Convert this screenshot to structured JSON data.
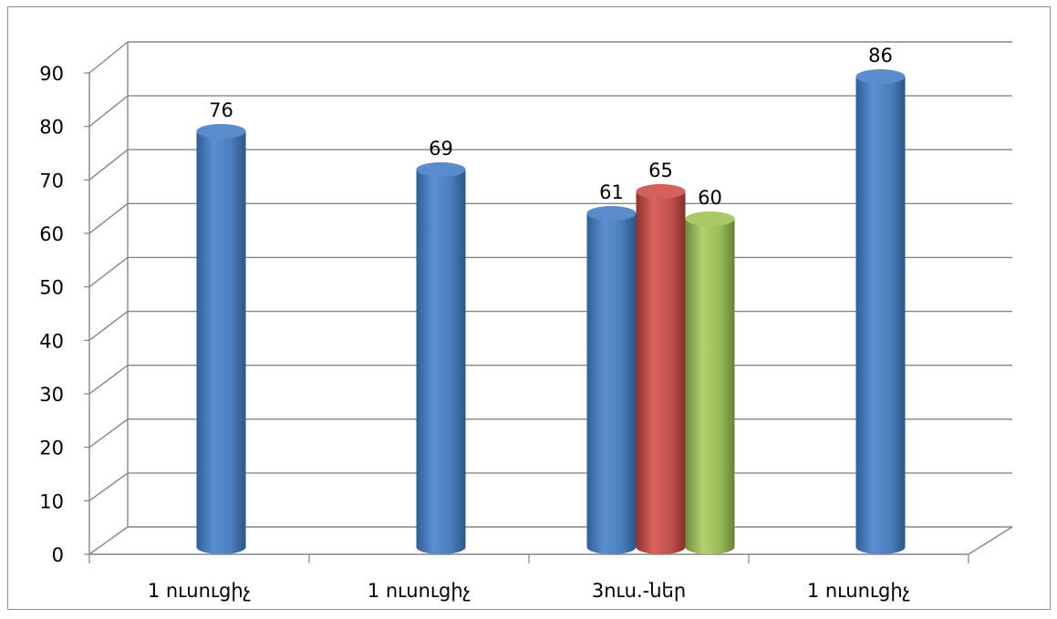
{
  "chart_data": {
    "type": "bar",
    "style": "3d-cylinder",
    "categories": [
      "1 ուսուցիչ",
      "1 ուսուցիչ",
      "3ուս.-ներ",
      "1 ուսուցիչ"
    ],
    "groups": [
      {
        "category": "1 ուսուցիչ",
        "values": [
          76
        ],
        "colors": [
          "#4a7ebb"
        ]
      },
      {
        "category": "1 ուսուցիչ",
        "values": [
          69
        ],
        "colors": [
          "#4a7ebb"
        ]
      },
      {
        "category": "3ուս.-ներ",
        "values": [
          61,
          65,
          60
        ],
        "colors": [
          "#4a7ebb",
          "#c0504d",
          "#9bbb59"
        ]
      },
      {
        "category": "1 ուսուցիչ",
        "values": [
          86
        ],
        "colors": [
          "#4a7ebb"
        ]
      }
    ],
    "title": "",
    "xlabel": "",
    "ylabel": "",
    "ylim": [
      0,
      90
    ],
    "yticks": [
      "0",
      "10",
      "20",
      "30",
      "40",
      "50",
      "60",
      "70",
      "80",
      "90"
    ],
    "grid": true,
    "legend": "none",
    "data_labels": true
  }
}
